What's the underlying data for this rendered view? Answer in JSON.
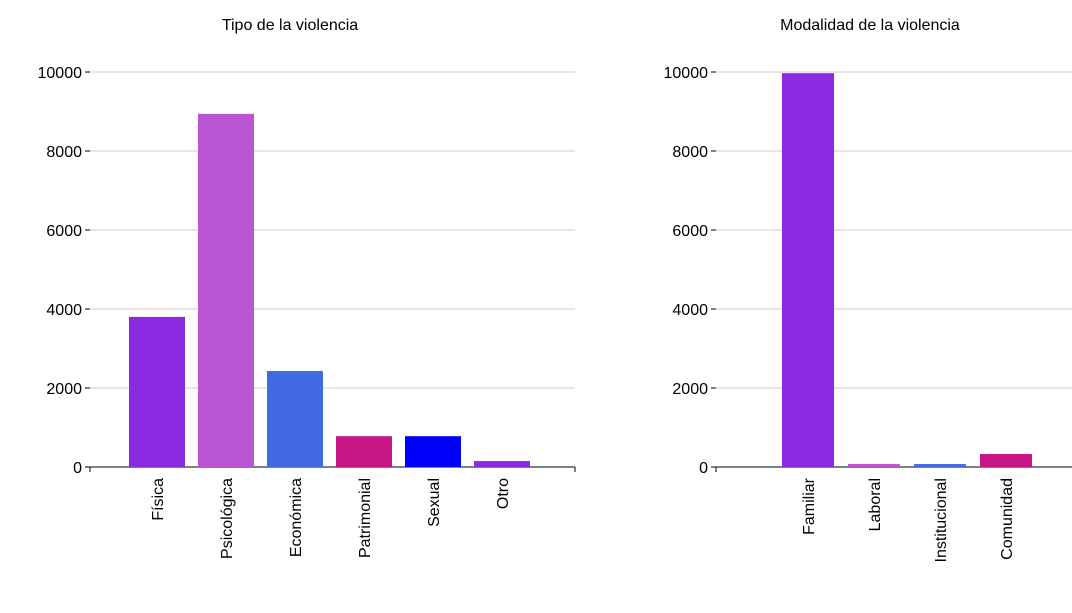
{
  "chart_data": [
    {
      "type": "bar",
      "title": "Tipo de la violencia",
      "categories": [
        "Física",
        "Psicológica",
        "Económica",
        "Patrimonial",
        "Sexual",
        "Otro"
      ],
      "values": [
        3800,
        8940,
        2430,
        780,
        780,
        150
      ],
      "colors": [
        "#8a2be2",
        "#ba55d3",
        "#4169e1",
        "#c71585",
        "#0000ff",
        "#8a2be2"
      ],
      "ylim": [
        0,
        10000
      ],
      "yticks": [
        0,
        2000,
        4000,
        6000,
        8000,
        10000
      ],
      "grid": true
    },
    {
      "type": "bar",
      "title": "Modalidad de la violencia",
      "categories": [
        "Familiar",
        "Laboral",
        "Institucional",
        "Comunidad"
      ],
      "values": [
        9970,
        75,
        75,
        330
      ],
      "colors": [
        "#8a2be2",
        "#ba55d3",
        "#4169e1",
        "#c71585"
      ],
      "ylim": [
        0,
        10000
      ],
      "yticks": [
        0,
        2000,
        4000,
        6000,
        8000,
        10000
      ],
      "grid": true
    }
  ]
}
